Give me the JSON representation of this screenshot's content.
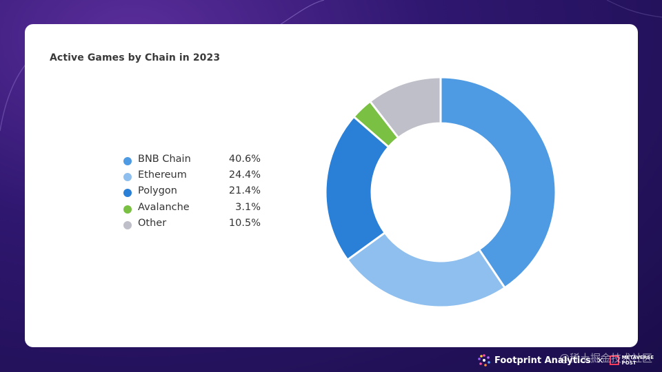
{
  "chart_data": {
    "type": "pie",
    "title": "Active Games by Chain in 2023",
    "slices": [
      {
        "label": "BNB Chain",
        "value": 40.6,
        "display": "40.6%",
        "color": "#4e9be4"
      },
      {
        "label": "Ethereum",
        "value": 24.4,
        "display": "24.4%",
        "color": "#8ebfee"
      },
      {
        "label": "Polygon",
        "value": 21.4,
        "display": "21.4%",
        "color": "#2a7fd6"
      },
      {
        "label": "Avalanche",
        "value": 3.1,
        "display": "3.1%",
        "color": "#7ac143"
      },
      {
        "label": "Other",
        "value": 10.5,
        "display": "10.5%",
        "color": "#bebfc8"
      }
    ],
    "donut": true,
    "legend_position": "left"
  },
  "footer": {
    "brand": "Footprint Analytics",
    "separator": "×",
    "partner_line1": "METAVERSE",
    "partner_line2": "POST"
  },
  "watermark": "@稀土掘金技术社区"
}
